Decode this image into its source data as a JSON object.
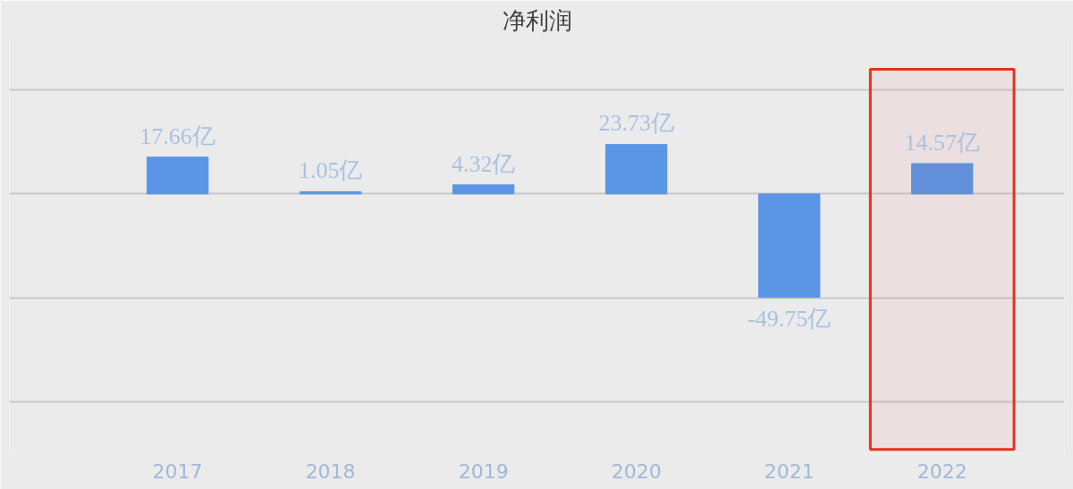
{
  "chart_data": {
    "type": "bar",
    "title": "净利润",
    "categories": [
      "2017",
      "2018",
      "2019",
      "2020",
      "2021",
      "2022"
    ],
    "values": [
      17.66,
      1.05,
      4.32,
      23.73,
      -49.75,
      14.57
    ],
    "value_labels": [
      "17.66亿",
      "1.05亿",
      "4.32亿",
      "23.73亿",
      "-49.75亿",
      "14.57亿"
    ],
    "color": "#5b96e6",
    "ylim": [
      -125,
      75
    ],
    "yticks": [
      {
        "value": -100,
        "label": null
      },
      {
        "value": -50,
        "label": null
      },
      {
        "value": 0,
        "label": null
      },
      {
        "value": 50,
        "label": null
      }
    ],
    "grid": "y",
    "tick_labels": "x",
    "bands": [
      {
        "axis": "x",
        "from": "2022",
        "to": "2022",
        "color": "#e8311a"
      }
    ]
  }
}
